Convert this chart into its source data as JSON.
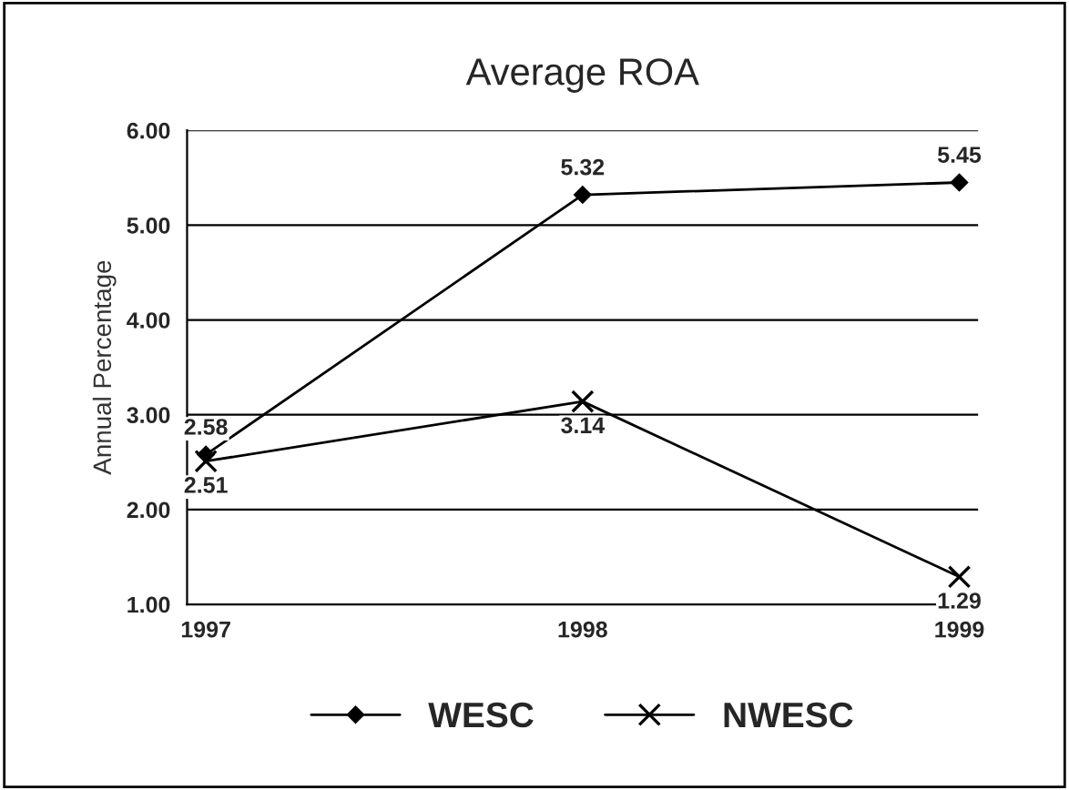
{
  "chart_data": {
    "type": "line",
    "title": "Average ROA",
    "ylabel": "Annual Percentage",
    "categories": [
      "1997",
      "1998",
      "1999"
    ],
    "series": [
      {
        "name": "WESC",
        "color": "#000000",
        "values": [
          2.58,
          5.32,
          5.45
        ],
        "marker": "diamond"
      },
      {
        "name": "NWESC",
        "color": "#000000",
        "values": [
          2.51,
          3.14,
          1.29
        ],
        "marker": "cross"
      }
    ],
    "ylim": [
      1,
      6
    ],
    "yticks": [
      {
        "value": 1,
        "label": "1.00"
      },
      {
        "value": 2,
        "label": "2.00"
      },
      {
        "value": 3,
        "label": "3.00"
      },
      {
        "value": 4,
        "label": "4.00"
      },
      {
        "value": 5,
        "label": "5.00"
      },
      {
        "value": 6,
        "label": "6.00"
      }
    ],
    "grid": "y",
    "legend": "bottom",
    "data_labels": true,
    "line_style": "solid"
  }
}
